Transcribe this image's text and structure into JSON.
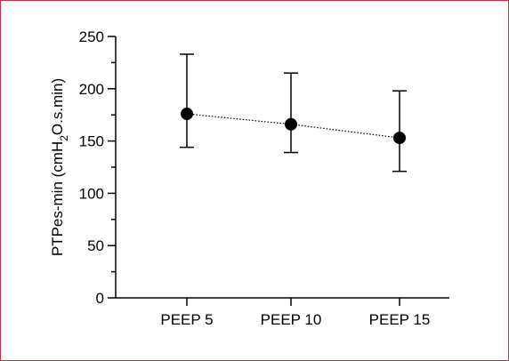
{
  "colors": {
    "frame_border": "#d7263d",
    "marker": "#000000",
    "axis": "#000000"
  },
  "chart_data": {
    "type": "scatter",
    "title": "",
    "xlabel": "",
    "ylabel": {
      "main": "PTPes-min (cmH",
      "subscript": "2",
      "suffix": "O.s.min)"
    },
    "ylim": [
      0,
      250
    ],
    "yticks": [
      "0",
      "50",
      "100",
      "150",
      "200",
      "250"
    ],
    "y_minor_step": 25,
    "categories": [
      "PEEP 5",
      "PEEP 10",
      "PEEP 15"
    ],
    "series": [
      {
        "values": [
          176,
          166,
          153
        ],
        "error_low": [
          144,
          139,
          121
        ],
        "error_high": [
          233,
          215,
          198
        ],
        "line_style": "dotted"
      }
    ],
    "grid": false,
    "legend": "none"
  }
}
